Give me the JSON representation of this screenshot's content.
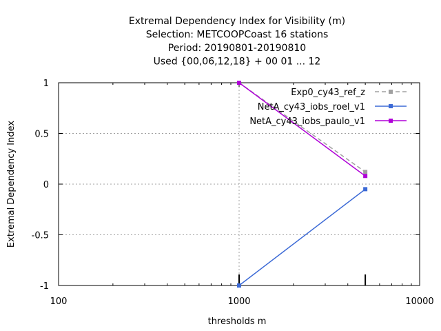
{
  "chart_data": {
    "type": "line",
    "title": [
      "Extremal Dependency Index  for Visibility (m)",
      "Selection: METCOOPCoast     16 stations",
      "Period: 20190801-20190810",
      "Used {00,06,12,18} + 00 01 ... 12"
    ],
    "xlabel": "thresholds m",
    "ylabel": "Extremal Dependency Index",
    "x_scale": "log",
    "xlim": [
      100,
      10000
    ],
    "ylim": [
      -1,
      1
    ],
    "x_ticks": [
      {
        "value": 100,
        "label": "100"
      },
      {
        "value": 1000,
        "label": "1000"
      },
      {
        "value": 10000,
        "label": "10000"
      }
    ],
    "y_ticks": [
      {
        "value": 1,
        "label": "1"
      },
      {
        "value": 0.5,
        "label": "0.5"
      },
      {
        "value": 0,
        "label": "0"
      },
      {
        "value": -0.5,
        "label": "-0.5"
      },
      {
        "value": -1,
        "label": "-1"
      }
    ],
    "grid": true,
    "legend_position": "top-right",
    "frequency_marks_x": [
      1000,
      5000
    ],
    "series": [
      {
        "name": "Exp0_cy43_ref_z",
        "color": "#a0a0a0",
        "dash": true,
        "marker": "square",
        "x": [
          1000,
          5000
        ],
        "y": [
          1.0,
          0.12
        ]
      },
      {
        "name": "NetA_cy43_iobs_roel_v1",
        "color": "#3c6ad6",
        "dash": false,
        "marker": "square",
        "x": [
          1000,
          5000
        ],
        "y": [
          -1.0,
          -0.05
        ]
      },
      {
        "name": "NetA_cy43_iobs_paulo_v1",
        "color": "#b000d8",
        "dash": false,
        "marker": "square",
        "x": [
          1000,
          5000
        ],
        "y": [
          1.0,
          0.08
        ]
      }
    ]
  }
}
